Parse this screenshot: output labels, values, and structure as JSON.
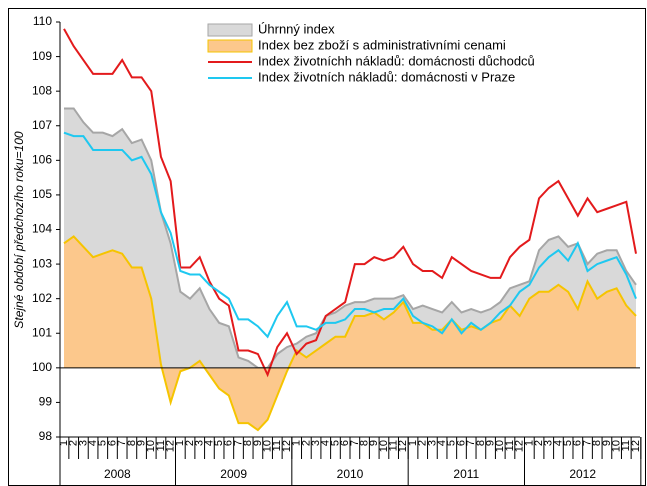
{
  "chart_data": {
    "type": "line",
    "y_label": "Stejné období předchozího roku=100",
    "categories": [
      "1",
      "2",
      "3",
      "4",
      "5",
      "6",
      "7",
      "8",
      "9",
      "10",
      "11",
      "12",
      "1",
      "2",
      "3",
      "4",
      "5",
      "6",
      "7",
      "8",
      "9",
      "10",
      "11",
      "12",
      "1",
      "2",
      "3",
      "4",
      "5",
      "6",
      "7",
      "8",
      "9",
      "10",
      "11",
      "12",
      "1",
      "2",
      "3",
      "4",
      "5",
      "6",
      "7",
      "8",
      "9",
      "10",
      "11",
      "12",
      "1",
      "2",
      "3",
      "4",
      "5",
      "6",
      "7",
      "8",
      "9",
      "10",
      "11",
      "12"
    ],
    "years": [
      "2008",
      "2009",
      "2010",
      "2011",
      "2012"
    ],
    "ylim": [
      98,
      110
    ],
    "yticks": [
      98,
      99,
      100,
      101,
      102,
      103,
      104,
      105,
      106,
      107,
      108,
      109,
      110
    ],
    "area_base": 100,
    "legend": "top",
    "series": [
      {
        "name": "Úhrnný index",
        "kind": "area",
        "color": "#d9d9d9",
        "edge": "#a6a6a6",
        "values": [
          107.5,
          107.5,
          107.1,
          106.8,
          106.8,
          106.7,
          106.9,
          106.5,
          106.6,
          106.0,
          104.5,
          103.6,
          102.2,
          102.0,
          102.3,
          101.7,
          101.3,
          101.2,
          100.3,
          100.2,
          100.0,
          100.0,
          100.4,
          100.6,
          100.7,
          100.9,
          101.0,
          101.5,
          101.6,
          101.8,
          101.9,
          101.9,
          102.0,
          102.0,
          102.0,
          102.1,
          101.7,
          101.8,
          101.7,
          101.6,
          101.9,
          101.6,
          101.7,
          101.6,
          101.7,
          101.9,
          102.3,
          102.4,
          102.5,
          103.4,
          103.7,
          103.8,
          103.5,
          103.6,
          103.0,
          103.3,
          103.4,
          103.4,
          102.8,
          102.4
        ]
      },
      {
        "name": "Index bez zboží s administrativními cenami",
        "kind": "area",
        "color": "#fcc88c",
        "edge": "#f5c400",
        "values": [
          103.6,
          103.8,
          103.5,
          103.2,
          103.3,
          103.4,
          103.3,
          102.9,
          102.9,
          102.0,
          100.1,
          99.0,
          99.9,
          100.0,
          100.2,
          99.8,
          99.4,
          99.2,
          98.4,
          98.4,
          98.2,
          98.5,
          99.2,
          99.9,
          100.5,
          100.3,
          100.5,
          100.7,
          100.9,
          100.9,
          101.5,
          101.5,
          101.6,
          101.4,
          101.6,
          101.9,
          101.3,
          101.3,
          101.1,
          101.1,
          101.4,
          101.1,
          101.2,
          101.1,
          101.3,
          101.4,
          101.8,
          101.5,
          102.0,
          102.2,
          102.2,
          102.4,
          102.2,
          101.7,
          102.5,
          102.0,
          102.2,
          102.3,
          101.8,
          101.5
        ]
      },
      {
        "name": "Index životníchh nákladů: domácnosti důchodců",
        "kind": "line",
        "color": "#e31a1c",
        "values": [
          109.8,
          109.3,
          108.9,
          108.5,
          108.5,
          108.5,
          108.9,
          108.4,
          108.4,
          108.0,
          106.1,
          105.4,
          102.9,
          102.9,
          103.2,
          102.5,
          102.0,
          101.8,
          100.5,
          100.5,
          100.4,
          99.8,
          100.6,
          101.0,
          100.4,
          100.7,
          100.8,
          101.5,
          101.7,
          101.9,
          103.0,
          103.0,
          103.2,
          103.1,
          103.2,
          103.5,
          103.0,
          102.8,
          102.8,
          102.6,
          103.2,
          103.0,
          102.8,
          102.7,
          102.6,
          102.6,
          103.2,
          103.5,
          103.7,
          104.9,
          105.2,
          105.4,
          104.9,
          104.4,
          104.9,
          104.5,
          104.6,
          104.7,
          104.8,
          103.3
        ]
      },
      {
        "name": "Index životních nákladů: domácnosti v Praze",
        "kind": "line",
        "color": "#1ec8f0",
        "values": [
          106.8,
          106.7,
          106.7,
          106.3,
          106.3,
          106.3,
          106.3,
          106.0,
          106.1,
          105.6,
          104.5,
          103.9,
          102.8,
          102.7,
          102.7,
          102.4,
          102.2,
          102.0,
          101.4,
          101.4,
          101.2,
          100.9,
          101.5,
          101.9,
          101.2,
          101.2,
          101.1,
          101.3,
          101.3,
          101.4,
          101.7,
          101.7,
          101.6,
          101.7,
          101.7,
          102.0,
          101.5,
          101.3,
          101.2,
          101.0,
          101.4,
          101.0,
          101.3,
          101.1,
          101.3,
          101.6,
          101.8,
          102.2,
          102.4,
          102.9,
          103.2,
          103.4,
          103.1,
          103.6,
          102.8,
          103.0,
          103.1,
          103.2,
          102.7,
          102.0
        ]
      }
    ]
  }
}
